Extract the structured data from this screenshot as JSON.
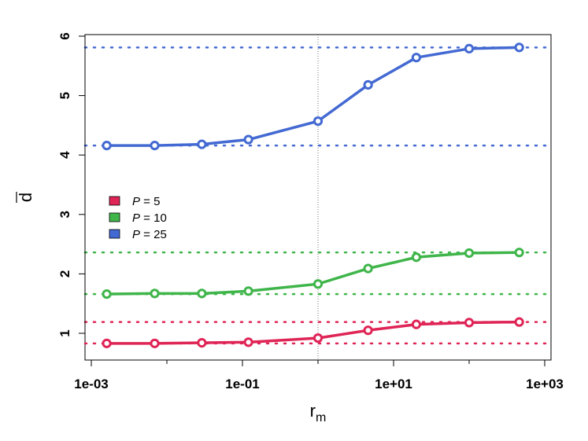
{
  "chart_data": {
    "type": "line",
    "title": "",
    "xlabel": {
      "main": "r",
      "sub": "m"
    },
    "ylabel": "d",
    "x_scale": "log10",
    "xlim": [
      0.001,
      1000
    ],
    "ylim": [
      0.6,
      6.0
    ],
    "x_ticks": [
      {
        "value": 0.001,
        "label": "1e-03"
      },
      {
        "value": 0.1,
        "label": "1e-01"
      },
      {
        "value": 10,
        "label": "1e+01"
      },
      {
        "value": 1000,
        "label": "1e+03"
      }
    ],
    "x_minor_ticks": [
      0.01,
      1,
      100
    ],
    "y_ticks": [
      {
        "value": 1,
        "label": "1"
      },
      {
        "value": 2,
        "label": "2"
      },
      {
        "value": 3,
        "label": "3"
      },
      {
        "value": 4,
        "label": "4"
      },
      {
        "value": 5,
        "label": "5"
      },
      {
        "value": 6,
        "label": "6"
      }
    ],
    "x": [
      0.0016,
      0.0069,
      0.029,
      0.12,
      1.0,
      4.6,
      20,
      100,
      460
    ],
    "series": [
      {
        "name": "P = 5",
        "name_parts": {
          "var": "P",
          "value": "5"
        },
        "color": "#DF2456",
        "values": [
          0.83,
          0.83,
          0.84,
          0.85,
          0.92,
          1.05,
          1.15,
          1.18,
          1.19
        ],
        "reference_lines": [
          0.83,
          1.19
        ]
      },
      {
        "name": "P = 10",
        "name_parts": {
          "var": "P",
          "value": "10"
        },
        "color": "#3FB54A",
        "values": [
          1.66,
          1.67,
          1.67,
          1.71,
          1.83,
          2.09,
          2.28,
          2.35,
          2.36
        ],
        "reference_lines": [
          1.66,
          2.36
        ]
      },
      {
        "name": "P = 25",
        "name_parts": {
          "var": "P",
          "value": "25"
        },
        "color": "#4369D2",
        "values": [
          4.16,
          4.16,
          4.18,
          4.26,
          4.57,
          5.18,
          5.64,
          5.79,
          5.81
        ],
        "reference_lines": [
          4.16,
          5.81
        ]
      }
    ],
    "vertical_reference_x": 1.0,
    "grid": false,
    "legend_position": "left-middle"
  }
}
